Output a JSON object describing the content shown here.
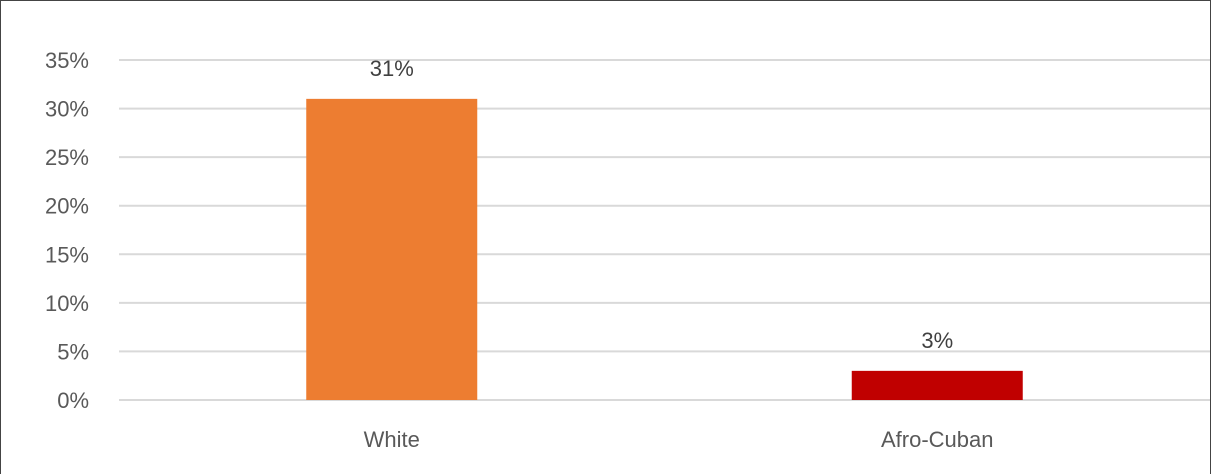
{
  "chart_data": {
    "type": "bar",
    "categories": [
      "White",
      "Afro-Cuban"
    ],
    "values": [
      31,
      3
    ],
    "data_labels": [
      "31%",
      "3%"
    ],
    "ylim": [
      0,
      35
    ],
    "yticks": [
      0,
      5,
      10,
      15,
      20,
      25,
      30,
      35
    ],
    "ytick_labels": [
      "0%",
      "5%",
      "10%",
      "15%",
      "20%",
      "25%",
      "30%",
      "35%"
    ],
    "grid": true,
    "legend": "none",
    "colors": [
      "#ED7D31",
      "#C00000"
    ],
    "gridline_color": "#D9D9D9",
    "title": "",
    "xlabel": "",
    "ylabel": ""
  }
}
